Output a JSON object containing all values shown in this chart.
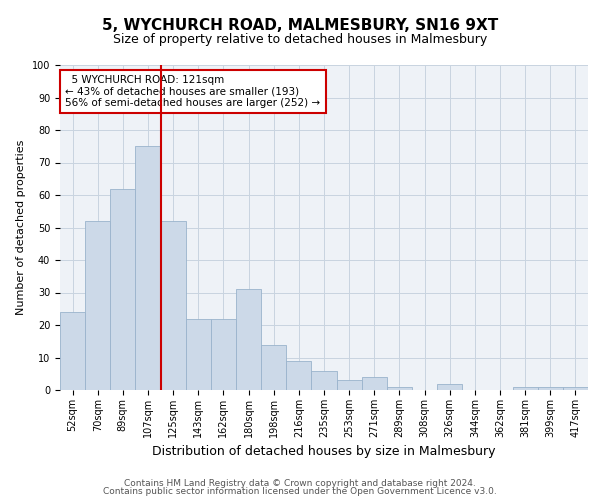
{
  "title": "5, WYCHURCH ROAD, MALMESBURY, SN16 9XT",
  "subtitle": "Size of property relative to detached houses in Malmesbury",
  "xlabel": "Distribution of detached houses by size in Malmesbury",
  "ylabel": "Number of detached properties",
  "footnote1": "Contains HM Land Registry data © Crown copyright and database right 2024.",
  "footnote2": "Contains public sector information licensed under the Open Government Licence v3.0.",
  "bar_labels": [
    "52sqm",
    "70sqm",
    "89sqm",
    "107sqm",
    "125sqm",
    "143sqm",
    "162sqm",
    "180sqm",
    "198sqm",
    "216sqm",
    "235sqm",
    "253sqm",
    "271sqm",
    "289sqm",
    "308sqm",
    "326sqm",
    "344sqm",
    "362sqm",
    "381sqm",
    "399sqm",
    "417sqm"
  ],
  "bar_values": [
    24,
    52,
    62,
    75,
    52,
    22,
    22,
    31,
    14,
    9,
    6,
    3,
    4,
    1,
    0,
    2,
    0,
    0,
    1,
    1,
    1
  ],
  "bar_color": "#ccd9e8",
  "bar_edge_color": "#9ab3cc",
  "vline_color": "#cc0000",
  "vline_x_index": 3.5,
  "annotation_title": "5 WYCHURCH ROAD: 121sqm",
  "annotation_line1": "← 43% of detached houses are smaller (193)",
  "annotation_line2": "56% of semi-detached houses are larger (252) →",
  "annotation_box_color": "white",
  "annotation_box_edge": "#cc0000",
  "ylim": [
    0,
    100
  ],
  "yticks": [
    0,
    10,
    20,
    30,
    40,
    50,
    60,
    70,
    80,
    90,
    100
  ],
  "grid_color": "#c8d4e0",
  "background_color": "#eef2f7",
  "title_fontsize": 11,
  "subtitle_fontsize": 9,
  "xlabel_fontsize": 9,
  "ylabel_fontsize": 8,
  "tick_fontsize": 7,
  "annotation_fontsize": 7.5,
  "footnote_fontsize": 6.5
}
